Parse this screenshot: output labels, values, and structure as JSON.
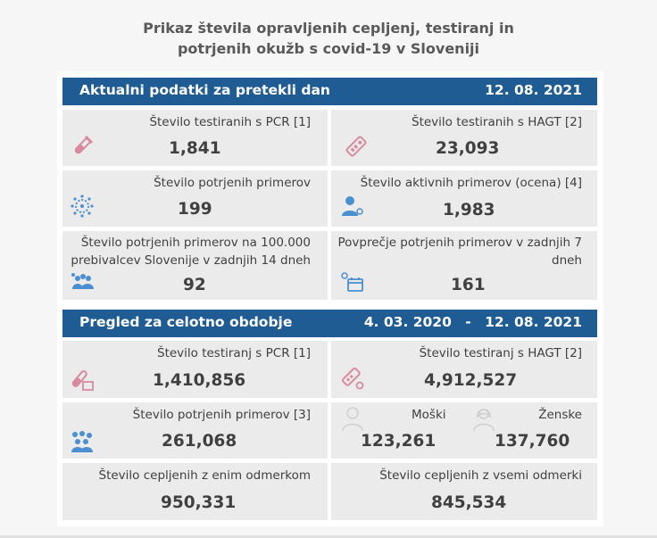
{
  "title_line1": "Prikaz števila opravljenih cepljenj, testiranj in",
  "title_line2": "potrjenih okužb s covid-19 v Sloveniji",
  "daily": {
    "heading": "Aktualni podatki za pretekli dan",
    "date": "12. 08. 2021",
    "pcr_label": "Število testiranih s PCR [1]",
    "pcr_value": "1,841",
    "hagt_label": "Število testiranih s HAGT [2]",
    "hagt_value": "23,093",
    "confirmed_label": "Število potrjenih primerov",
    "confirmed_value": "199",
    "active_label": "Število aktivnih primerov (ocena) [4]",
    "active_value": "1,983",
    "per100k_label_1": "Število potrjenih primerov na 100.000",
    "per100k_label_2": "prebivalcev Slovenije v zadnjih 14 dneh",
    "per100k_value": "92",
    "avg7_label_1": "Povprečje potrjenih primerov v zadnjih 7",
    "avg7_label_2": "dneh",
    "avg7_value": "161"
  },
  "overall": {
    "heading": "Pregled za celotno obdobje",
    "date_from": "4. 03. 2020",
    "dash": "-",
    "date_to": "12. 08. 2021",
    "pcr_label": "Število testiranj s PCR [1]",
    "pcr_value": "1,410,856",
    "hagt_label": "Število testiranj s HAGT [2]",
    "hagt_value": "4,912,527",
    "confirmed_label": "Število potrjenih primerov [3]",
    "confirmed_value": "261,068",
    "male_label": "Moški",
    "male_value": "123,261",
    "female_label": "Ženske",
    "female_value": "137,760",
    "vacc1_label": "Število cepljenih z enim odmerkom",
    "vacc1_value": "950,331",
    "vaccall_label": "Število cepljenih z vsemi odmerki",
    "vaccall_value": "845,534"
  },
  "icons": {
    "pcr": "test-tube-icon",
    "hagt": "rapid-test-icon",
    "virus": "virus-icon",
    "person": "person-virus-icon",
    "group": "group-icon",
    "calendar": "calendar-virus-icon",
    "male": "male-icon",
    "female": "female-icon"
  },
  "colors": {
    "header_bg": "#1f5c93",
    "card_bg": "#ebebeb",
    "icon_pink": "#d88aa0",
    "icon_blue": "#4a8fd0"
  }
}
